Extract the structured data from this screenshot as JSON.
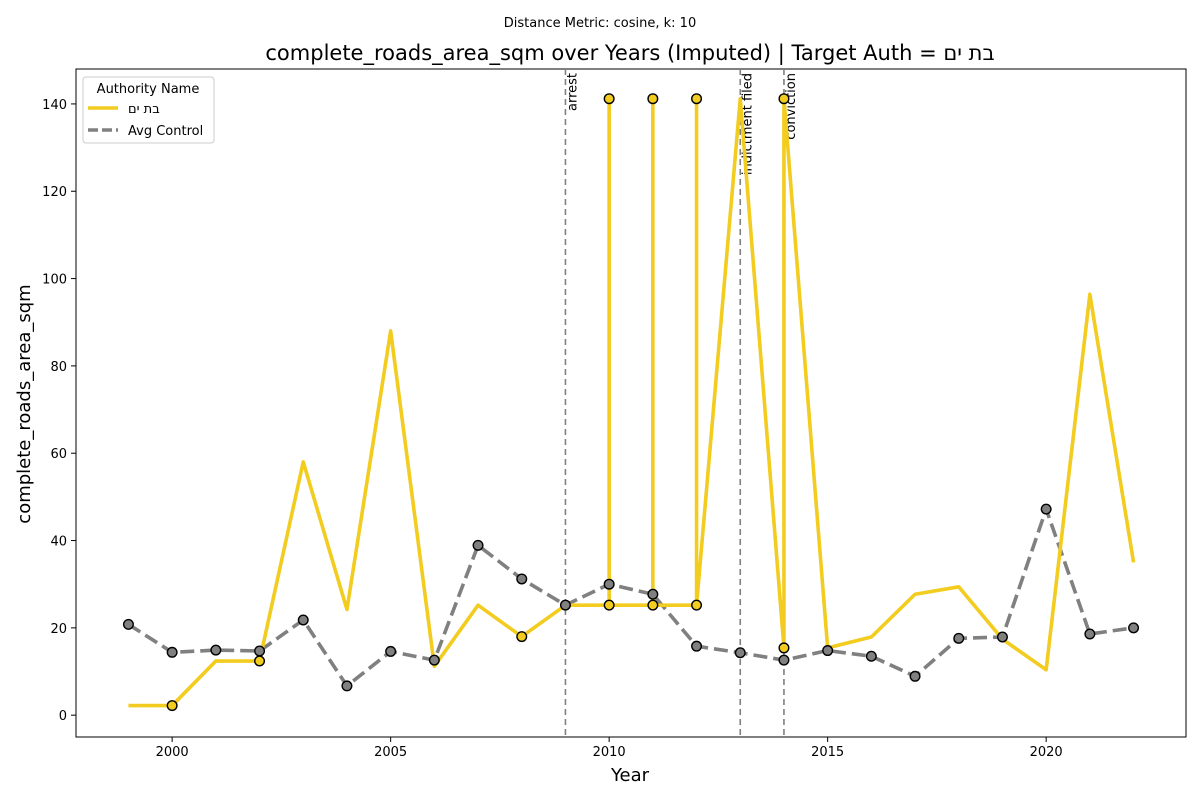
{
  "chart_data": {
    "type": "line",
    "suptitle": "Distance Metric: cosine, k: 10",
    "title": "complete_roads_area_sqm over Years (Imputed) | Target Auth = בת ים",
    "xlabel": "Year",
    "ylabel": "complete_roads_area_sqm",
    "xlim": [
      1997.8,
      2023.2
    ],
    "ylim": [
      -5,
      148
    ],
    "xticks": [
      2000,
      2005,
      2010,
      2015,
      2020
    ],
    "yticks": [
      0,
      20,
      40,
      60,
      80,
      100,
      120,
      140
    ],
    "grid": false,
    "legend": {
      "title": "Authority Name",
      "placement": "top-left",
      "entries": [
        "בת ים",
        "Avg Control"
      ]
    },
    "events": [
      {
        "x": 2009,
        "label": "arrest"
      },
      {
        "x": 2013,
        "label": "indictment filed"
      },
      {
        "x": 2014,
        "label": "conviction"
      }
    ],
    "series": [
      {
        "name": "בת ים",
        "color": "#f2cc1e",
        "style": "solid",
        "x": [
          1999,
          2000,
          2001,
          2002,
          2002,
          2003,
          2004,
          2005,
          2006,
          2007,
          2008,
          2009,
          2010,
          2010,
          2010,
          2011,
          2011,
          2011,
          2012,
          2012,
          2012,
          2013,
          2014,
          2014,
          2015,
          2016,
          2017,
          2018,
          2019,
          2020,
          2021,
          2022
        ],
        "y": [
          2.2,
          2.2,
          12.4,
          12.4,
          12.4,
          58.0,
          24.2,
          88.0,
          11.2,
          25.2,
          18.0,
          25.2,
          25.2,
          141.2,
          25.2,
          25.2,
          141.2,
          25.2,
          25.2,
          141.2,
          25.2,
          141.2,
          15.4,
          141.2,
          15.4,
          17.9,
          27.7,
          29.4,
          17.4,
          10.4,
          96.4,
          35.0
        ],
        "markers": [
          {
            "x": 2000,
            "y": 2.2
          },
          {
            "x": 2002,
            "y": 12.4
          },
          {
            "x": 2008,
            "y": 18.0
          },
          {
            "x": 2010,
            "y": 141.2
          },
          {
            "x": 2010,
            "y": 25.2
          },
          {
            "x": 2011,
            "y": 141.2
          },
          {
            "x": 2011,
            "y": 25.2
          },
          {
            "x": 2012,
            "y": 141.2
          },
          {
            "x": 2012,
            "y": 25.2
          },
          {
            "x": 2014,
            "y": 141.2
          },
          {
            "x": 2014,
            "y": 15.4
          }
        ]
      },
      {
        "name": "Avg Control",
        "color": "#808080",
        "style": "dashed",
        "x": [
          1999,
          2000,
          2001,
          2002,
          2003,
          2004,
          2005,
          2006,
          2007,
          2008,
          2009,
          2010,
          2011,
          2012,
          2013,
          2014,
          2015,
          2016,
          2017,
          2018,
          2019,
          2020,
          2021,
          2022
        ],
        "y": [
          20.8,
          14.4,
          14.9,
          14.7,
          21.8,
          6.7,
          14.6,
          12.6,
          38.9,
          31.2,
          25.2,
          30.0,
          27.7,
          15.8,
          14.3,
          12.6,
          14.8,
          13.5,
          8.9,
          17.6,
          17.9,
          47.2,
          18.6,
          20.0
        ],
        "markers": [
          {
            "x": 1999,
            "y": 20.8
          },
          {
            "x": 2000,
            "y": 14.4
          },
          {
            "x": 2001,
            "y": 14.9
          },
          {
            "x": 2002,
            "y": 14.7
          },
          {
            "x": 2003,
            "y": 21.8
          },
          {
            "x": 2004,
            "y": 6.7
          },
          {
            "x": 2005,
            "y": 14.6
          },
          {
            "x": 2006,
            "y": 12.6
          },
          {
            "x": 2007,
            "y": 38.9
          },
          {
            "x": 2008,
            "y": 31.2
          },
          {
            "x": 2009,
            "y": 25.2
          },
          {
            "x": 2010,
            "y": 30.0
          },
          {
            "x": 2011,
            "y": 27.7
          },
          {
            "x": 2012,
            "y": 15.8
          },
          {
            "x": 2013,
            "y": 14.3
          },
          {
            "x": 2014,
            "y": 12.6
          },
          {
            "x": 2015,
            "y": 14.8
          },
          {
            "x": 2016,
            "y": 13.5
          },
          {
            "x": 2017,
            "y": 8.9
          },
          {
            "x": 2018,
            "y": 17.6
          },
          {
            "x": 2019,
            "y": 17.9
          },
          {
            "x": 2020,
            "y": 47.2
          },
          {
            "x": 2021,
            "y": 18.6
          },
          {
            "x": 2022,
            "y": 20.0
          }
        ]
      }
    ]
  }
}
